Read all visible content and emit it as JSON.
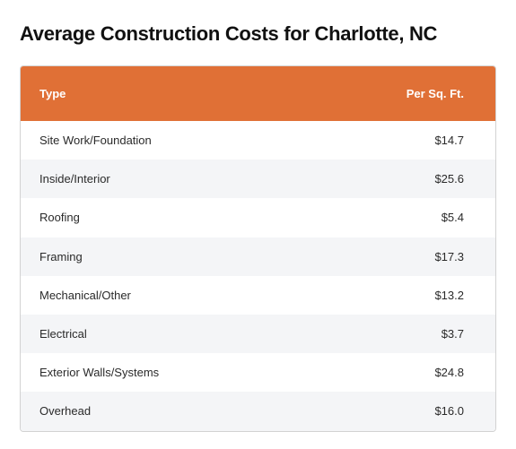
{
  "title": "Average Construction Costs for Charlotte, NC",
  "table": {
    "headers": {
      "type": "Type",
      "price": "Per Sq. Ft."
    },
    "rows": [
      {
        "type": "Site Work/Foundation",
        "price": "$14.7"
      },
      {
        "type": "Inside/Interior",
        "price": "$25.6"
      },
      {
        "type": "Roofing",
        "price": "$5.4"
      },
      {
        "type": "Framing",
        "price": "$17.3"
      },
      {
        "type": "Mechanical/Other",
        "price": "$13.2"
      },
      {
        "type": "Electrical",
        "price": "$3.7"
      },
      {
        "type": "Exterior Walls/Systems",
        "price": "$24.8"
      },
      {
        "type": "Overhead",
        "price": "$16.0"
      }
    ]
  },
  "colors": {
    "header_background": "#e07036",
    "header_text": "#ffffff",
    "stripe_row": "#f4f5f7"
  }
}
